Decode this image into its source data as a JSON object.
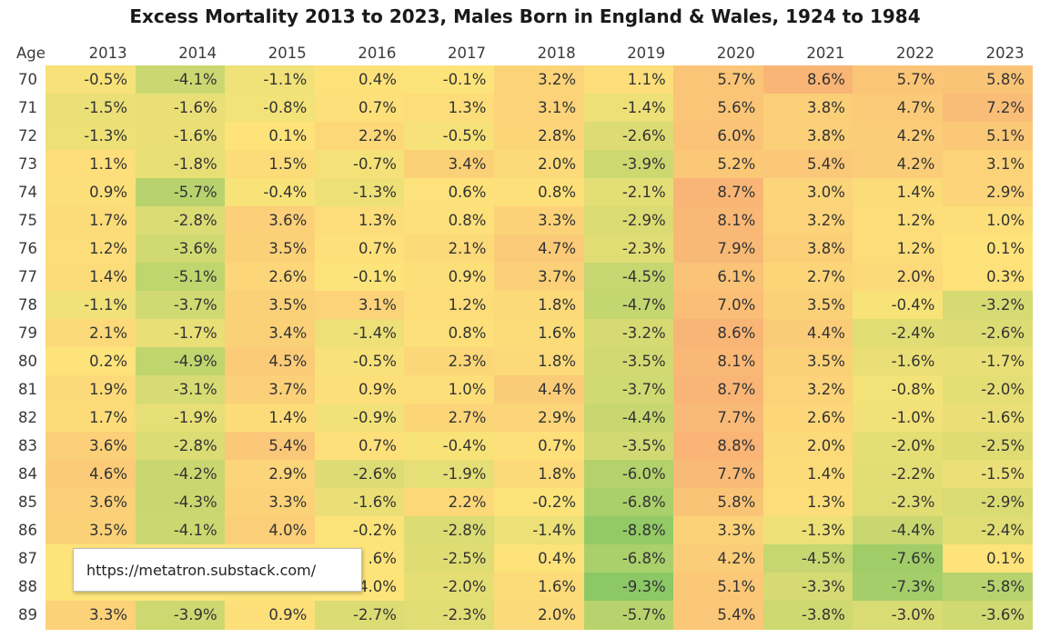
{
  "chart_data": {
    "type": "heatmap",
    "title": "Excess Mortality 2013 to 2023, Males Born in England & Wales, 1924 to 1984",
    "row_header": "Age",
    "columns": [
      "2013",
      "2014",
      "2015",
      "2016",
      "2017",
      "2018",
      "2019",
      "2020",
      "2021",
      "2022",
      "2023"
    ],
    "rows": [
      {
        "age": "70",
        "values": [
          "-0.5%",
          "-4.1%",
          "-1.1%",
          "0.4%",
          "-0.1%",
          "3.2%",
          "1.1%",
          "5.7%",
          "8.6%",
          "5.7%",
          "5.8%"
        ]
      },
      {
        "age": "71",
        "values": [
          "-1.5%",
          "-1.6%",
          "-0.8%",
          "0.7%",
          "1.3%",
          "3.1%",
          "-1.4%",
          "5.6%",
          "3.8%",
          "4.7%",
          "7.2%"
        ]
      },
      {
        "age": "72",
        "values": [
          "-1.3%",
          "-1.6%",
          "0.1%",
          "2.2%",
          "-0.5%",
          "2.8%",
          "-2.6%",
          "6.0%",
          "3.8%",
          "4.2%",
          "5.1%"
        ]
      },
      {
        "age": "73",
        "values": [
          "1.1%",
          "-1.8%",
          "1.5%",
          "-0.7%",
          "3.4%",
          "2.0%",
          "-3.9%",
          "5.2%",
          "5.4%",
          "4.2%",
          "3.1%"
        ]
      },
      {
        "age": "74",
        "values": [
          "0.9%",
          "-5.7%",
          "-0.4%",
          "-1.3%",
          "0.6%",
          "0.8%",
          "-2.1%",
          "8.7%",
          "3.0%",
          "1.4%",
          "2.9%"
        ]
      },
      {
        "age": "75",
        "values": [
          "1.7%",
          "-2.8%",
          "3.6%",
          "1.3%",
          "0.8%",
          "3.3%",
          "-2.9%",
          "8.1%",
          "3.2%",
          "1.2%",
          "1.0%"
        ]
      },
      {
        "age": "76",
        "values": [
          "1.2%",
          "-3.6%",
          "3.5%",
          "0.7%",
          "2.1%",
          "4.7%",
          "-2.3%",
          "7.9%",
          "3.8%",
          "1.2%",
          "0.1%"
        ]
      },
      {
        "age": "77",
        "values": [
          "1.4%",
          "-5.1%",
          "2.6%",
          "-0.1%",
          "0.9%",
          "3.7%",
          "-4.5%",
          "6.1%",
          "2.7%",
          "2.0%",
          "0.3%"
        ]
      },
      {
        "age": "78",
        "values": [
          "-1.1%",
          "-3.7%",
          "3.5%",
          "3.1%",
          "1.2%",
          "1.8%",
          "-4.7%",
          "7.0%",
          "3.5%",
          "-0.4%",
          "-3.2%"
        ]
      },
      {
        "age": "79",
        "values": [
          "2.1%",
          "-1.7%",
          "3.4%",
          "-1.4%",
          "0.8%",
          "1.6%",
          "-3.2%",
          "8.6%",
          "4.4%",
          "-2.4%",
          "-2.6%"
        ]
      },
      {
        "age": "80",
        "values": [
          "0.2%",
          "-4.9%",
          "4.5%",
          "-0.5%",
          "2.3%",
          "1.8%",
          "-3.5%",
          "8.1%",
          "3.5%",
          "-1.6%",
          "-1.7%"
        ]
      },
      {
        "age": "81",
        "values": [
          "1.9%",
          "-3.1%",
          "3.7%",
          "0.9%",
          "1.0%",
          "4.4%",
          "-3.7%",
          "8.7%",
          "3.2%",
          "-0.8%",
          "-2.0%"
        ]
      },
      {
        "age": "82",
        "values": [
          "1.7%",
          "-1.9%",
          "1.4%",
          "-0.9%",
          "2.7%",
          "2.9%",
          "-4.4%",
          "7.7%",
          "2.6%",
          "-1.0%",
          "-1.6%"
        ]
      },
      {
        "age": "83",
        "values": [
          "3.6%",
          "-2.8%",
          "5.4%",
          "0.7%",
          "-0.4%",
          "0.7%",
          "-3.5%",
          "8.8%",
          "2.0%",
          "-2.0%",
          "-2.5%"
        ]
      },
      {
        "age": "84",
        "values": [
          "4.6%",
          "-4.2%",
          "2.9%",
          "-2.6%",
          "-1.9%",
          "1.8%",
          "-6.0%",
          "7.7%",
          "1.4%",
          "-2.2%",
          "-1.5%"
        ]
      },
      {
        "age": "85",
        "values": [
          "3.6%",
          "-4.3%",
          "3.3%",
          "-1.6%",
          "2.2%",
          "-0.2%",
          "-6.8%",
          "5.8%",
          "1.3%",
          "-2.3%",
          "-2.9%"
        ]
      },
      {
        "age": "86",
        "values": [
          "3.5%",
          "-4.1%",
          "4.0%",
          "-0.2%",
          "-2.8%",
          "-1.4%",
          "-8.8%",
          "3.3%",
          "-1.3%",
          "-4.4%",
          "-2.4%"
        ]
      },
      {
        "age": "87",
        "values": [
          "",
          "",
          "",
          "",
          "-2.5%",
          "0.4%",
          "-6.8%",
          "4.2%",
          "-4.5%",
          "-7.6%",
          "0.1%"
        ]
      },
      {
        "age": "88",
        "values": [
          "",
          "",
          "",
          "",
          "-2.0%",
          "1.6%",
          "-9.3%",
          "5.1%",
          "-3.3%",
          "-7.3%",
          "-5.8%"
        ]
      },
      {
        "age": "89",
        "values": [
          "3.3%",
          "-3.9%",
          "0.9%",
          "-2.7%",
          "-2.3%",
          "2.0%",
          "-5.7%",
          "5.4%",
          "-3.8%",
          "-3.0%",
          "-3.6%"
        ]
      }
    ],
    "partial_labels": [
      {
        "row": 17,
        "col": 3,
        "text": ".6%"
      },
      {
        "row": 18,
        "col": 3,
        "text": "4.0%"
      }
    ],
    "color_scale": {
      "min": -9.3,
      "mid": 0,
      "max": 8.8,
      "low_color": "#8cc865",
      "mid_color": "#fde47a",
      "high_color": "#f9b476"
    }
  },
  "overlay": {
    "url": "https://metatron.substack.com/"
  }
}
